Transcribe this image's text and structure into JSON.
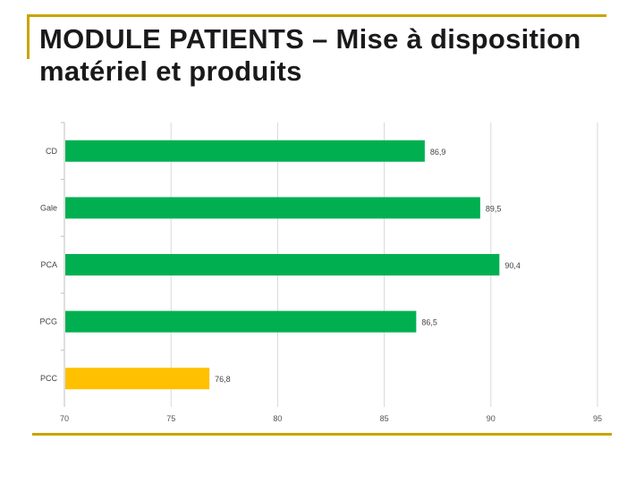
{
  "page": {
    "title": "MODULE PATIENTS – Mise à disposition matériel et produits"
  },
  "colors": {
    "frame": "#c8a400",
    "bar_default": "#00b050",
    "bar_highlight": "#ffc000",
    "grid": "#d9d9d9"
  },
  "chart_data": {
    "type": "bar",
    "orientation": "horizontal",
    "categories": [
      "CD",
      "Gale",
      "PCA",
      "PCG",
      "PCC"
    ],
    "values": [
      86.9,
      89.5,
      90.4,
      86.5,
      76.8
    ],
    "value_labels": [
      "86,9",
      "89,5",
      "90,4",
      "86,5",
      "76,8"
    ],
    "bar_colors": [
      "#00b050",
      "#00b050",
      "#00b050",
      "#00b050",
      "#ffc000"
    ],
    "xlim": [
      70,
      95
    ],
    "x_ticks": [
      "70",
      "75",
      "80",
      "85",
      "90",
      "95"
    ],
    "grid": true,
    "title": "",
    "xlabel": "",
    "ylabel": ""
  }
}
